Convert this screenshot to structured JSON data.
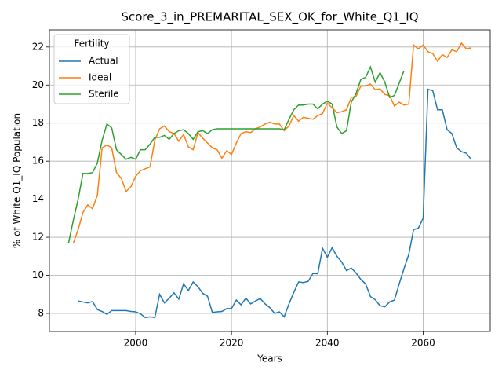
{
  "chart_data": {
    "type": "line",
    "title": "Score_3_in_PREMARITAL_SEX_OK_for_White_Q1_IQ",
    "x_label": "Years",
    "y_label": "% of White Q1_IQ Population",
    "legend_title": "Fertility",
    "legend_loc": "upper left",
    "grid": true,
    "x": [
      1986,
      1987,
      1988,
      1989,
      1990,
      1991,
      1992,
      1993,
      1994,
      1995,
      1996,
      1997,
      1998,
      1999,
      2000,
      2001,
      2002,
      2003,
      2004,
      2005,
      2006,
      2007,
      2008,
      2009,
      2010,
      2011,
      2012,
      2013,
      2014,
      2015,
      2016,
      2017,
      2018,
      2019,
      2020,
      2021,
      2022,
      2023,
      2024,
      2025,
      2026,
      2027,
      2028,
      2029,
      2030,
      2031,
      2032,
      2033,
      2034,
      2035,
      2036,
      2037,
      2038,
      2039,
      2040,
      2041,
      2042,
      2043,
      2044,
      2045,
      2046,
      2047,
      2048,
      2049,
      2050,
      2051,
      2052,
      2053,
      2054,
      2055,
      2056,
      2057,
      2058,
      2059,
      2060,
      2061,
      2062,
      2063,
      2064,
      2065,
      2066,
      2067,
      2068,
      2069,
      2070
    ],
    "xlim": [
      1982,
      2074
    ],
    "xticks": [
      2000,
      2020,
      2040,
      2060
    ],
    "ylim": [
      7.05,
      22.9
    ],
    "yticks": [
      8,
      10,
      12,
      14,
      16,
      18,
      20,
      22
    ],
    "series": [
      {
        "name": "Actual",
        "color": "#1f77b4",
        "values": [
          null,
          null,
          8.65,
          8.6,
          8.55,
          8.62,
          8.2,
          8.1,
          7.95,
          8.15,
          8.15,
          8.15,
          8.15,
          8.1,
          8.08,
          7.98,
          7.78,
          7.82,
          7.78,
          9.0,
          8.55,
          8.8,
          9.08,
          8.75,
          9.55,
          9.2,
          9.65,
          9.4,
          9.05,
          8.9,
          8.05,
          8.08,
          8.1,
          8.25,
          8.25,
          8.7,
          8.45,
          8.8,
          8.5,
          8.65,
          8.78,
          8.5,
          8.3,
          8.0,
          8.08,
          7.82,
          8.5,
          9.1,
          9.65,
          9.62,
          9.68,
          10.1,
          10.08,
          11.42,
          10.95,
          11.45,
          11.0,
          10.7,
          10.25,
          10.38,
          10.12,
          9.78,
          9.55,
          8.88,
          8.72,
          8.4,
          8.35,
          8.6,
          8.7,
          9.55,
          10.35,
          11.1,
          12.4,
          12.48,
          13.0,
          19.78,
          19.7,
          18.7,
          18.7,
          17.65,
          17.45,
          16.7,
          16.5,
          16.42,
          16.1
        ]
      },
      {
        "name": "Ideal",
        "color": "#ff7f0e",
        "values": [
          null,
          11.7,
          12.4,
          13.3,
          13.7,
          13.5,
          14.2,
          16.7,
          16.85,
          16.7,
          15.4,
          15.1,
          14.4,
          14.65,
          15.2,
          15.5,
          15.6,
          15.7,
          17.1,
          17.7,
          17.85,
          17.55,
          17.45,
          17.05,
          17.4,
          16.75,
          16.6,
          17.5,
          17.2,
          16.95,
          16.7,
          16.6,
          16.15,
          16.55,
          16.35,
          16.95,
          17.45,
          17.55,
          17.5,
          17.7,
          17.8,
          17.95,
          18.05,
          17.95,
          17.95,
          17.6,
          17.85,
          18.4,
          18.1,
          18.3,
          18.25,
          18.2,
          18.4,
          18.5,
          19.05,
          18.8,
          18.55,
          18.6,
          18.7,
          19.35,
          19.4,
          19.95,
          19.95,
          20.05,
          19.75,
          19.8,
          19.5,
          19.45,
          18.9,
          19.1,
          18.95,
          19.0,
          22.1,
          21.9,
          22.1,
          21.75,
          21.65,
          21.25,
          21.6,
          21.45,
          21.85,
          21.75,
          22.2,
          21.9,
          21.95
        ]
      },
      {
        "name": "Sterile",
        "color": "#2ca02c",
        "values": [
          11.7,
          12.9,
          14.0,
          15.35,
          15.35,
          15.4,
          15.9,
          17.1,
          17.95,
          17.75,
          16.6,
          16.35,
          16.1,
          16.2,
          16.1,
          16.6,
          16.6,
          16.9,
          17.25,
          17.25,
          17.35,
          17.15,
          17.45,
          17.6,
          17.65,
          17.45,
          17.15,
          17.55,
          17.6,
          17.45,
          17.65,
          17.7,
          17.7,
          17.7,
          17.7,
          17.7,
          17.7,
          17.7,
          17.7,
          17.7,
          17.7,
          17.7,
          17.7,
          17.7,
          17.7,
          17.65,
          18.2,
          18.7,
          18.95,
          18.95,
          19.0,
          19.0,
          18.75,
          19.0,
          19.15,
          19.0,
          17.8,
          17.45,
          17.6,
          19.1,
          19.55,
          20.3,
          20.4,
          20.95,
          20.15,
          20.65,
          20.15,
          19.35,
          19.45,
          20.1,
          20.75,
          null,
          null,
          null,
          null,
          null,
          null,
          null,
          null,
          null,
          null,
          null,
          null,
          null,
          null
        ]
      }
    ]
  }
}
